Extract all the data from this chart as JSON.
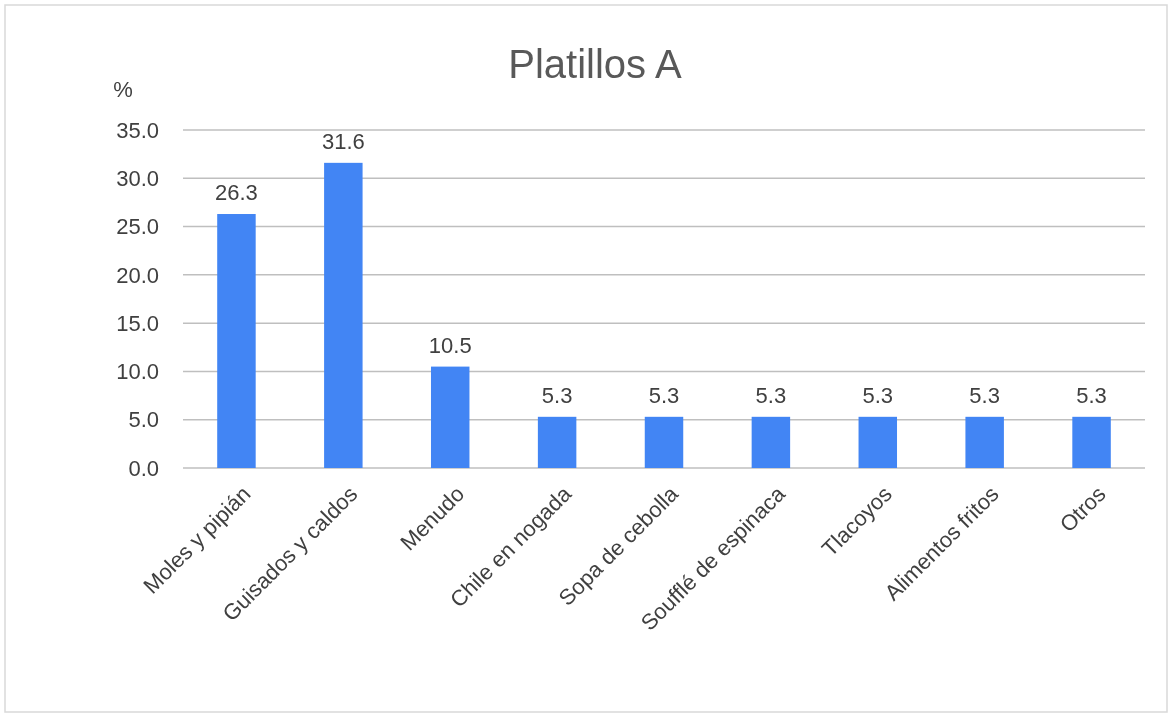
{
  "chart_data": {
    "type": "bar",
    "title": "Platillos A",
    "ylabel": "%",
    "categories": [
      "Moles y pipián",
      "Guisados y caldos",
      "Menudo",
      "Chile en nogada",
      "Sopa de cebolla",
      "Soufflé de espinaca",
      "Tlacoyos",
      "Alimentos fritos",
      "Otros"
    ],
    "values": [
      26.3,
      31.6,
      10.5,
      5.3,
      5.3,
      5.3,
      5.3,
      5.3,
      5.3
    ],
    "color": "#4285f4",
    "ylim": [
      0,
      35
    ],
    "yticks": [
      {
        "value": 0,
        "label": "0.0"
      },
      {
        "value": 5,
        "label": "5.0"
      },
      {
        "value": 10,
        "label": "10.0"
      },
      {
        "value": 15,
        "label": "15.0"
      },
      {
        "value": 20,
        "label": "20.0"
      },
      {
        "value": 25,
        "label": "25.0"
      },
      {
        "value": 30,
        "label": "30.0"
      },
      {
        "value": 35,
        "label": "35.0"
      }
    ],
    "grid": "y",
    "data_labels": true
  }
}
